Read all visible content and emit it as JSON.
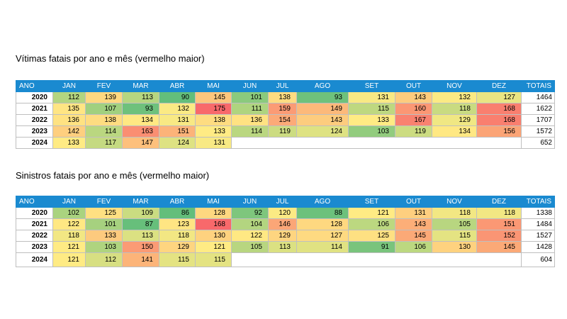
{
  "months": [
    "JAN",
    "FEV",
    "MAR",
    "ABR",
    "MAI",
    "JUN",
    "JUL",
    "AGO",
    "SET",
    "OUT",
    "NOV",
    "DEZ"
  ],
  "header": {
    "ano": "ANO",
    "totais": "TOTAIS"
  },
  "colors": {
    "green": "#63be7b",
    "yellow": "#ffeb84",
    "red": "#f8696b",
    "header_blue": "#1a8ad0"
  },
  "tables": [
    {
      "title": "Vítimas fatais por  ano e mês (vermelho maior)",
      "rows": [
        {
          "year": "2020",
          "values": [
            112,
            139,
            113,
            90,
            145,
            101,
            138,
            93,
            131,
            143,
            132,
            127
          ],
          "total": "1464"
        },
        {
          "year": "2021",
          "values": [
            135,
            107,
            93,
            132,
            175,
            111,
            159,
            149,
            115,
            160,
            118,
            168
          ],
          "total": "1622"
        },
        {
          "year": "2022",
          "values": [
            136,
            138,
            134,
            131,
            138,
            136,
            154,
            143,
            133,
            167,
            129,
            168
          ],
          "total": "1707"
        },
        {
          "year": "2023",
          "values": [
            142,
            114,
            163,
            151,
            133,
            114,
            119,
            124,
            103,
            119,
            134,
            156
          ],
          "total": "1572"
        },
        {
          "year": "2024",
          "values": [
            133,
            117,
            147,
            124,
            131
          ],
          "total": "652"
        }
      ]
    },
    {
      "title": "Sinistros fatais por ano e mês (vermelho maior)",
      "rows": [
        {
          "year": "2020",
          "values": [
            102,
            125,
            109,
            86,
            128,
            92,
            120,
            88,
            121,
            131,
            118,
            118
          ],
          "total": "1338"
        },
        {
          "year": "2021",
          "values": [
            122,
            101,
            87,
            123,
            168,
            104,
            146,
            128,
            106,
            143,
            105,
            151
          ],
          "total": "1484"
        },
        {
          "year": "2022",
          "values": [
            118,
            133,
            113,
            118,
            130,
            122,
            129,
            127,
            125,
            145,
            115,
            152
          ],
          "total": "1527"
        },
        {
          "year": "2023",
          "values": [
            121,
            103,
            150,
            129,
            121,
            105,
            113,
            114,
            91,
            106,
            130,
            145
          ],
          "total": "1428"
        },
        {
          "year": "2024",
          "values": [
            121,
            112,
            141,
            115,
            115
          ],
          "total": "604"
        }
      ]
    }
  ]
}
